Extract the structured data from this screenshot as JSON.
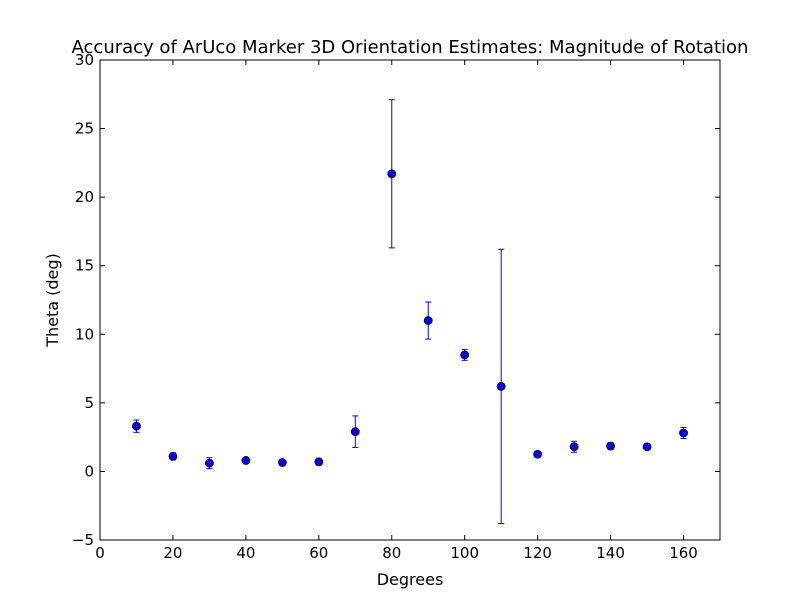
{
  "chart_data": {
    "type": "scatter",
    "title": "Accuracy of ArUco Marker 3D Orientation Estimates: Magnitude of Rotation",
    "xlabel": "Degrees",
    "ylabel": "Theta (deg)",
    "xlim": [
      0,
      170
    ],
    "ylim": [
      -5,
      30
    ],
    "xticks": [
      0,
      20,
      40,
      60,
      80,
      100,
      120,
      140,
      160
    ],
    "xtick_labels": [
      "0",
      "20",
      "40",
      "60",
      "80",
      "100",
      "120",
      "140",
      "160"
    ],
    "yticks": [
      -5,
      0,
      5,
      10,
      15,
      20,
      25,
      30
    ],
    "ytick_labels": [
      "−5",
      "0",
      "5",
      "10",
      "15",
      "20",
      "25",
      "30"
    ],
    "grid": false,
    "error_bars": true,
    "series": [
      {
        "color": "#0000ff",
        "marker": "circle",
        "points": [
          {
            "x": 10,
            "y": 3.3,
            "err": 0.45
          },
          {
            "x": 20,
            "y": 1.1,
            "err": 0.25
          },
          {
            "x": 30,
            "y": 0.6,
            "err": 0.4
          },
          {
            "x": 40,
            "y": 0.8,
            "err": 0.15
          },
          {
            "x": 50,
            "y": 0.65,
            "err": 0.15
          },
          {
            "x": 60,
            "y": 0.7,
            "err": 0.2
          },
          {
            "x": 70,
            "y": 2.9,
            "err": 1.15
          },
          {
            "x": 80,
            "y": 21.7,
            "err": 5.4
          },
          {
            "x": 90,
            "y": 11.0,
            "err": 1.35
          },
          {
            "x": 100,
            "y": 8.5,
            "err": 0.4
          },
          {
            "x": 110,
            "y": 6.2,
            "err": 10.0
          },
          {
            "x": 120,
            "y": 1.25,
            "err": 0.2
          },
          {
            "x": 130,
            "y": 1.8,
            "err": 0.4
          },
          {
            "x": 140,
            "y": 1.85,
            "err": 0.25
          },
          {
            "x": 150,
            "y": 1.8,
            "err": 0.2
          },
          {
            "x": 160,
            "y": 2.8,
            "err": 0.4
          }
        ]
      }
    ]
  }
}
